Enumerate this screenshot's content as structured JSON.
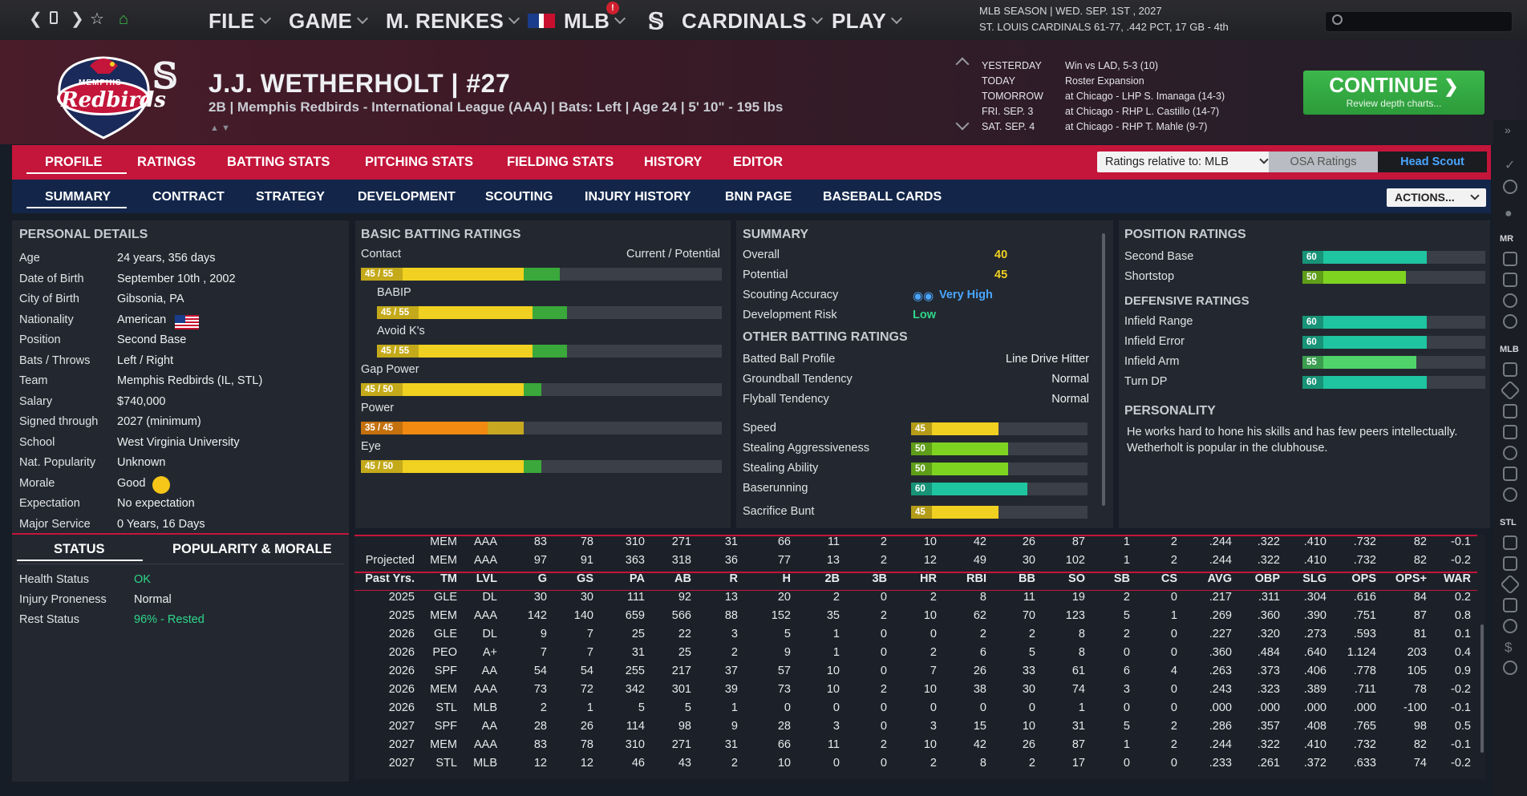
{
  "topbar": {
    "menus": [
      "FILE",
      "GAME",
      "M. RENKES",
      "MLB",
      "CARDINALS",
      "PLAY"
    ],
    "season_line": "MLB SEASON  |  WED. SEP. 1ST , 2027",
    "team_line": "ST. LOUIS CARDINALS  61-77, .442 PCT, 17 GB - 4th",
    "notification_badge": "!"
  },
  "player": {
    "name": "J.J. WETHERHOLT  |  #27",
    "info": "2B | Memphis Redbirds - International League (AAA)  |  Bats: Left  |  Age 24  |  5' 10\" - 195 lbs",
    "logo_text": "Redbirds",
    "logo_top": "MEMPHIS"
  },
  "schedule": [
    {
      "day": "YESTERDAY",
      "text": "Win vs LAD, 5-3 (10)"
    },
    {
      "day": "TODAY",
      "text": "Roster Expansion"
    },
    {
      "day": "TOMORROW",
      "text": "at Chicago - LHP S. Imanaga (14-3)"
    },
    {
      "day": "FRI. SEP. 3",
      "text": "at Chicago - RHP L. Castillo (14-7)"
    },
    {
      "day": "SAT. SEP. 4",
      "text": "at Chicago - RHP T. Mahle (9-7)"
    }
  ],
  "continue": {
    "label": "CONTINUE",
    "sub": "Review depth charts..."
  },
  "tabs_main": [
    "PROFILE",
    "RATINGS",
    "BATTING STATS",
    "PITCHING STATS",
    "FIELDING STATS",
    "HISTORY",
    "EDITOR"
  ],
  "ratings_select": "Ratings relative to: MLB",
  "osa_ratings": "OSA Ratings",
  "head_scout": "Head Scout",
  "tabs_sub": [
    "SUMMARY",
    "CONTRACT",
    "STRATEGY",
    "DEVELOPMENT",
    "SCOUTING",
    "INJURY HISTORY",
    "BNN PAGE",
    "BASEBALL CARDS"
  ],
  "actions": "ACTIONS...",
  "personal": {
    "title": "PERSONAL DETAILS",
    "rows": [
      [
        "Age",
        "24 years, 356 days"
      ],
      [
        "Date of Birth",
        "September 10th , 2002"
      ],
      [
        "City of Birth",
        "Gibsonia, PA"
      ],
      [
        "Nationality",
        "American"
      ],
      [
        "Position",
        "Second Base"
      ],
      [
        "Bats / Throws",
        "Left / Right"
      ],
      [
        "Team",
        "Memphis Redbirds (IL, STL)"
      ],
      [
        "Salary",
        "$740,000"
      ],
      [
        "Signed through",
        "2027 (minimum)"
      ],
      [
        "School",
        "West Virginia University"
      ],
      [
        "Nat. Popularity",
        "Unknown"
      ],
      [
        "Morale",
        "Good"
      ],
      [
        "Expectation",
        "No expectation"
      ],
      [
        "Major Service",
        "0 Years, 16 Days"
      ]
    ]
  },
  "status": {
    "tab1": "STATUS",
    "tab2": "POPULARITY & MORALE",
    "rows": [
      [
        "Health Status",
        "OK"
      ],
      [
        "Injury Proneness",
        "Normal"
      ],
      [
        "Rest Status",
        "96% - Rested"
      ]
    ]
  },
  "batting": {
    "title": "BASIC BATTING RATINGS",
    "header_right": "Current / Potential",
    "rows": [
      {
        "label": "Contact",
        "tag": "45 / 55",
        "cur": 45,
        "pot": 55,
        "color": "#f0d020"
      },
      {
        "label": "BABIP",
        "tag": "45 / 55",
        "cur": 45,
        "pot": 55,
        "color": "#f0d020"
      },
      {
        "label": "Avoid K's",
        "tag": "45 / 55",
        "cur": 45,
        "pot": 55,
        "color": "#f0d020"
      },
      {
        "label": "Gap Power",
        "tag": "45 / 50",
        "cur": 45,
        "pot": 50,
        "color": "#f0d020"
      },
      {
        "label": "Power",
        "tag": "35 / 45",
        "cur": 35,
        "pot": 45,
        "color": "#f08a10"
      },
      {
        "label": "Eye",
        "tag": "45 / 50",
        "cur": 45,
        "pot": 50,
        "color": "#f0d020"
      }
    ]
  },
  "summary": {
    "title": "SUMMARY",
    "overall": [
      "Overall",
      "40"
    ],
    "potential": [
      "Potential",
      "45"
    ],
    "accuracy": [
      "Scouting Accuracy",
      "Very High"
    ],
    "risk": [
      "Development Risk",
      "Low"
    ],
    "other_title": "OTHER BATTING RATINGS",
    "other": [
      [
        "Batted Ball Profile",
        "Line Drive Hitter"
      ],
      [
        "Groundball Tendency",
        "Normal"
      ],
      [
        "Flyball Tendency",
        "Normal"
      ]
    ],
    "bars": [
      {
        "label": "Speed",
        "value": 45,
        "color": "#f0d020"
      },
      {
        "label": "Stealing Aggressiveness",
        "value": 50,
        "color": "#7ed321"
      },
      {
        "label": "Stealing Ability",
        "value": 50,
        "color": "#7ed321"
      },
      {
        "label": "Baserunning",
        "value": 60,
        "color": "#1fc4a0"
      },
      {
        "label": "Sacrifice Bunt",
        "value": 45,
        "color": "#f0d020"
      }
    ]
  },
  "positions": {
    "title": "POSITION RATINGS",
    "rows": [
      {
        "label": "Second Base",
        "value": 60,
        "color": "#1fc4a0"
      },
      {
        "label": "Shortstop",
        "value": 50,
        "color": "#7ed321"
      }
    ],
    "def_title": "DEFENSIVE RATINGS",
    "def": [
      {
        "label": "Infield Range",
        "value": 60,
        "color": "#1fc4a0"
      },
      {
        "label": "Infield Error",
        "value": 60,
        "color": "#1fc4a0"
      },
      {
        "label": "Infield Arm",
        "value": 55,
        "color": "#4fd36a"
      },
      {
        "label": "Turn DP",
        "value": 60,
        "color": "#1fc4a0"
      }
    ],
    "pers_title": "PERSONALITY",
    "pers_text": "He works hard to hone his skills and has few peers intellectually. Wetherholt is popular in the clubhouse."
  },
  "stats": {
    "top_rows": [
      [
        "",
        "MEM",
        "AAA",
        "83",
        "78",
        "310",
        "271",
        "31",
        "66",
        "11",
        "2",
        "10",
        "42",
        "26",
        "87",
        "1",
        "2",
        ".244",
        ".322",
        ".410",
        ".732",
        "82",
        "-0.1"
      ],
      [
        "Projected",
        "MEM",
        "AAA",
        "97",
        "91",
        "363",
        "318",
        "36",
        "77",
        "13",
        "2",
        "12",
        "49",
        "30",
        "102",
        "1",
        "2",
        ".244",
        ".322",
        ".410",
        ".732",
        "82",
        "-0.2"
      ]
    ],
    "header": [
      "Past Yrs.",
      "TM",
      "LVL",
      "G",
      "GS",
      "PA",
      "AB",
      "R",
      "H",
      "2B",
      "3B",
      "HR",
      "RBI",
      "BB",
      "SO",
      "SB",
      "CS",
      "AVG",
      "OBP",
      "SLG",
      "OPS",
      "OPS+",
      "WAR"
    ],
    "rows": [
      [
        "2025",
        "GLE",
        "DL",
        "30",
        "30",
        "111",
        "92",
        "13",
        "20",
        "2",
        "0",
        "2",
        "8",
        "11",
        "19",
        "2",
        "0",
        ".217",
        ".311",
        ".304",
        ".616",
        "84",
        "0.2"
      ],
      [
        "2025",
        "MEM",
        "AAA",
        "142",
        "140",
        "659",
        "566",
        "88",
        "152",
        "35",
        "2",
        "10",
        "62",
        "70",
        "123",
        "5",
        "1",
        ".269",
        ".360",
        ".390",
        ".751",
        "87",
        "0.8"
      ],
      [
        "2026",
        "GLE",
        "DL",
        "9",
        "7",
        "25",
        "22",
        "3",
        "5",
        "1",
        "0",
        "0",
        "2",
        "2",
        "8",
        "2",
        "0",
        ".227",
        ".320",
        ".273",
        ".593",
        "81",
        "0.1"
      ],
      [
        "2026",
        "PEO",
        "A+",
        "7",
        "7",
        "31",
        "25",
        "2",
        "9",
        "1",
        "0",
        "2",
        "6",
        "5",
        "8",
        "0",
        "0",
        ".360",
        ".484",
        ".640",
        "1.124",
        "203",
        "0.4"
      ],
      [
        "2026",
        "SPF",
        "AA",
        "54",
        "54",
        "255",
        "217",
        "37",
        "57",
        "10",
        "0",
        "7",
        "26",
        "33",
        "61",
        "6",
        "4",
        ".263",
        ".373",
        ".406",
        ".778",
        "105",
        "0.9"
      ],
      [
        "2026",
        "MEM",
        "AAA",
        "73",
        "72",
        "342",
        "301",
        "39",
        "73",
        "10",
        "2",
        "10",
        "38",
        "30",
        "74",
        "3",
        "0",
        ".243",
        ".323",
        ".389",
        ".711",
        "78",
        "-0.2"
      ],
      [
        "2026",
        "STL",
        "MLB",
        "2",
        "1",
        "5",
        "5",
        "1",
        "0",
        "0",
        "0",
        "0",
        "0",
        "0",
        "1",
        "0",
        "0",
        ".000",
        ".000",
        ".000",
        ".000",
        "-100",
        "-0.1"
      ],
      [
        "2027",
        "SPF",
        "AA",
        "28",
        "26",
        "114",
        "98",
        "9",
        "28",
        "3",
        "0",
        "3",
        "15",
        "10",
        "31",
        "5",
        "2",
        ".286",
        ".357",
        ".408",
        ".765",
        "98",
        "0.5"
      ],
      [
        "2027",
        "MEM",
        "AAA",
        "83",
        "78",
        "310",
        "271",
        "31",
        "66",
        "11",
        "2",
        "10",
        "42",
        "26",
        "87",
        "1",
        "2",
        ".244",
        ".322",
        ".410",
        ".732",
        "82",
        "-0.1"
      ],
      [
        "2027",
        "STL",
        "MLB",
        "12",
        "12",
        "46",
        "43",
        "2",
        "10",
        "0",
        "0",
        "2",
        "8",
        "2",
        "17",
        "0",
        "0",
        ".233",
        ".261",
        ".372",
        ".633",
        "74",
        "-0.2"
      ]
    ]
  },
  "sidebar_labels": [
    "MR",
    "MLB",
    "STL"
  ]
}
